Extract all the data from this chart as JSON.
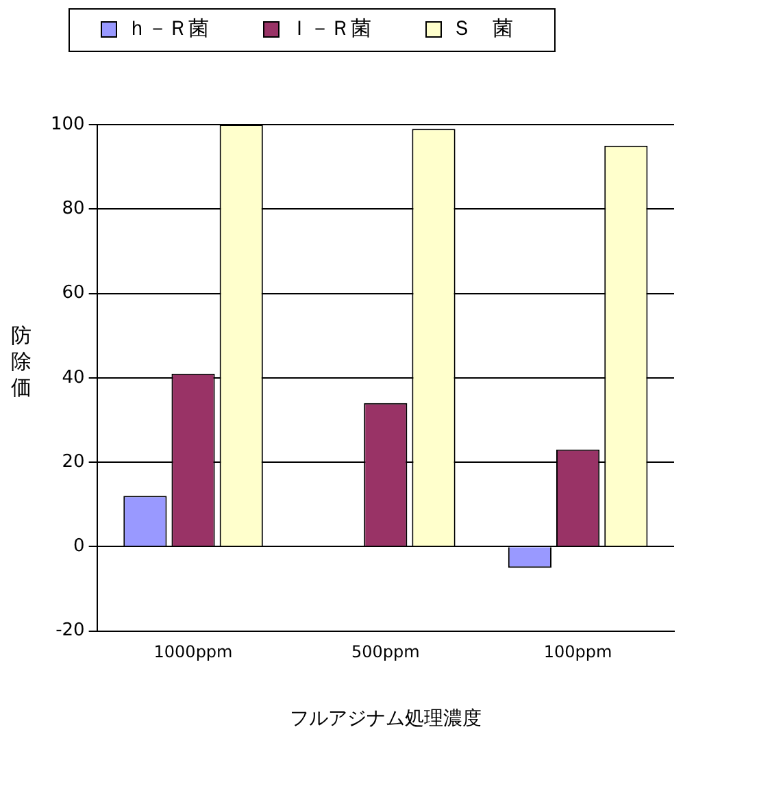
{
  "chart_data": {
    "type": "bar",
    "categories": [
      "1000ppm",
      "500ppm",
      "100ppm"
    ],
    "series": [
      {
        "name": "ｈ－Ｒ菌",
        "color": "#9999ff",
        "values": [
          12,
          0,
          -5
        ]
      },
      {
        "name": "Ｉ－Ｒ菌",
        "color": "#993366",
        "values": [
          41,
          34,
          23
        ]
      },
      {
        "name": "Ｓ　菌",
        "color": "#ffffcc",
        "values": [
          100,
          99,
          95
        ]
      }
    ],
    "xlabel": "フルアジナム処理濃度",
    "ylabel": "防除価",
    "ylim": [
      -20,
      100
    ],
    "yticks": [
      -20,
      0,
      20,
      40,
      60,
      80,
      100
    ],
    "grid": "y",
    "legend": "top left"
  }
}
